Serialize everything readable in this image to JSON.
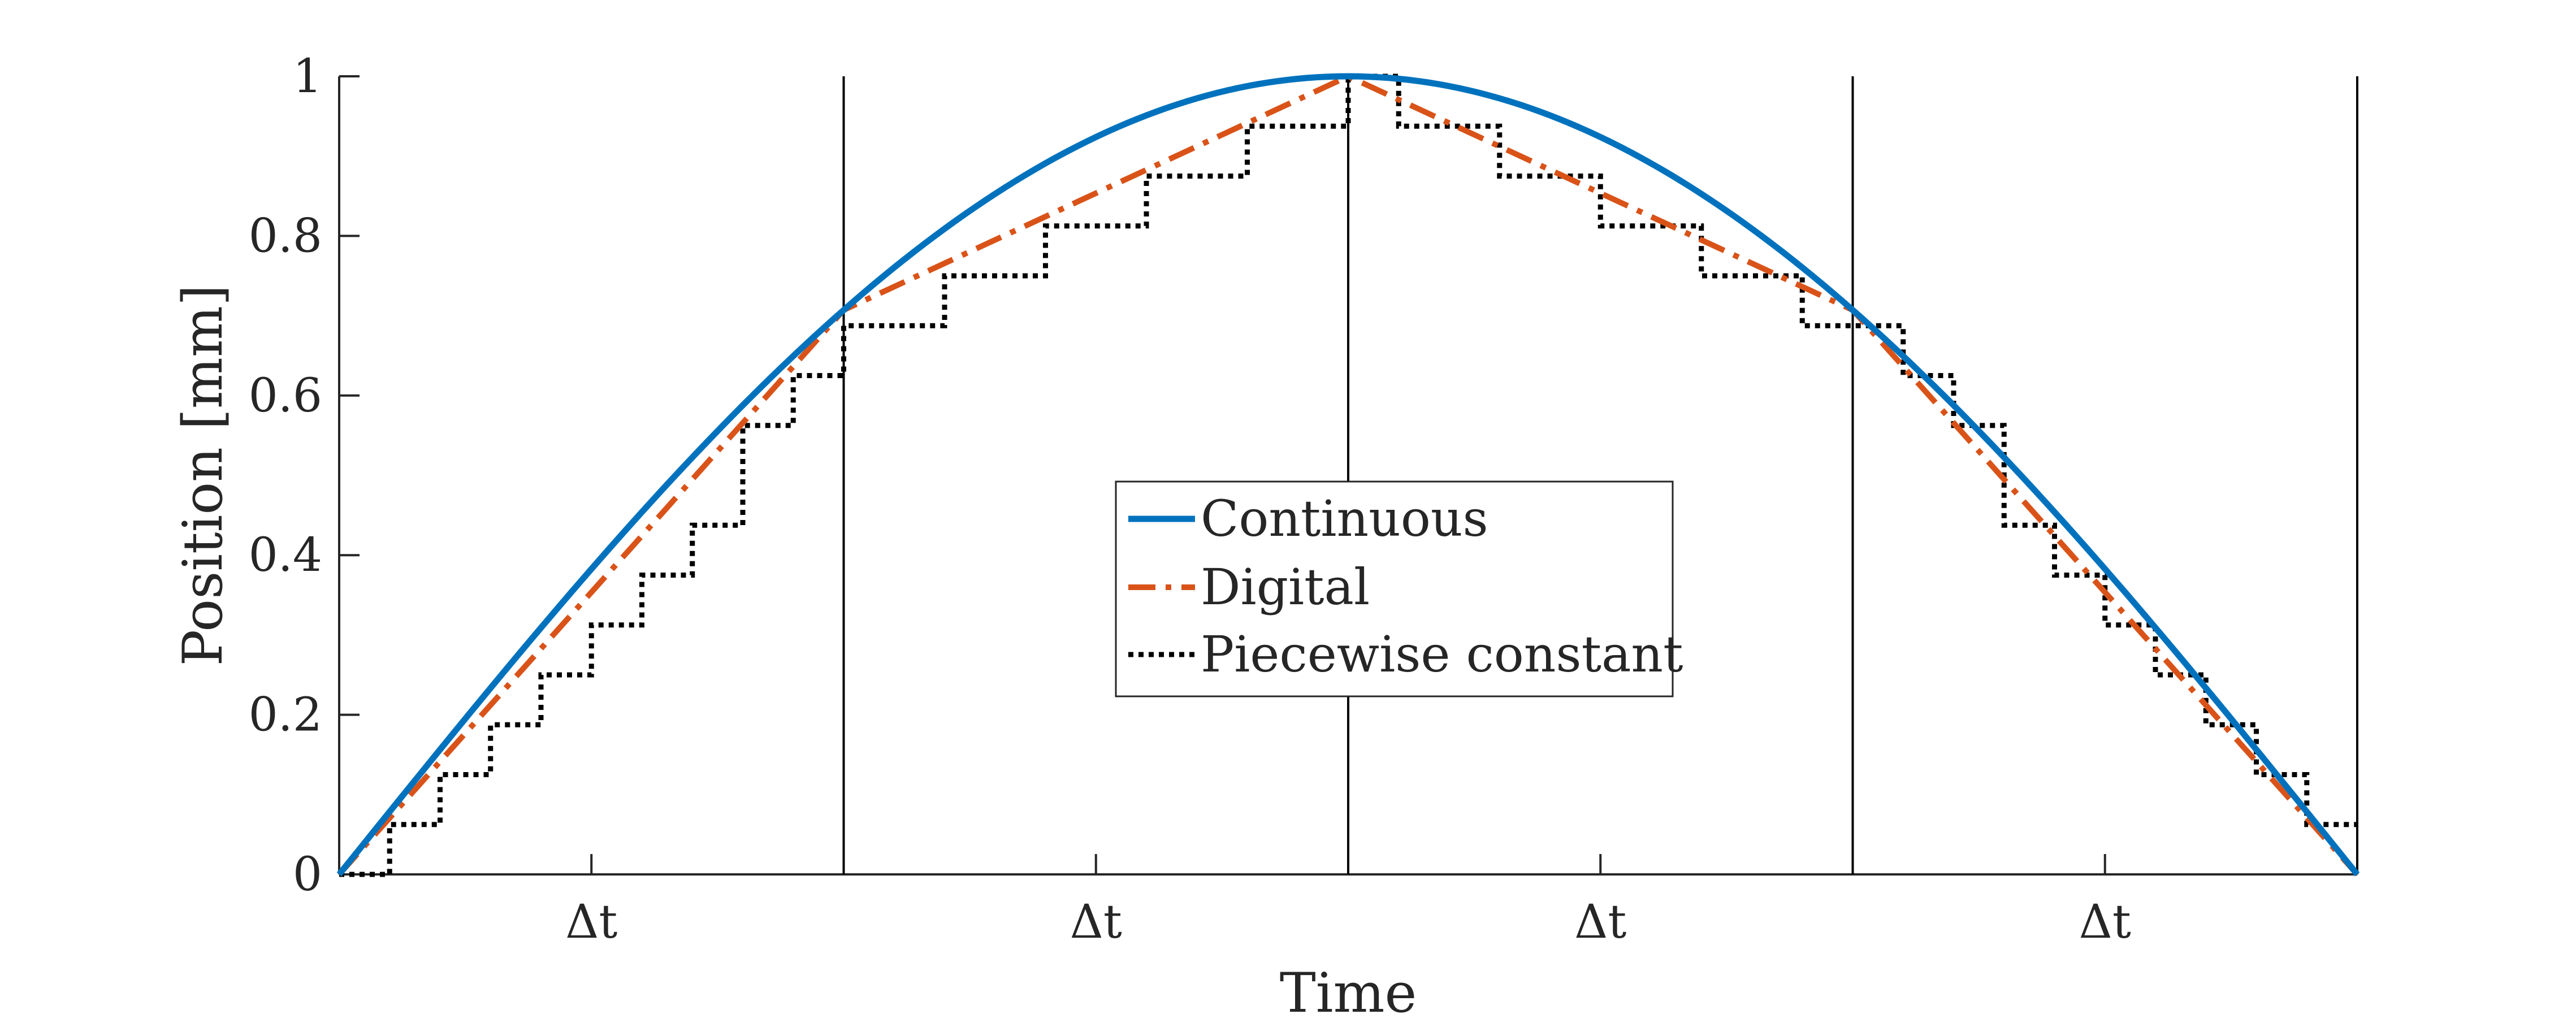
{
  "chart_data": {
    "type": "line",
    "xlabel": "Time",
    "ylabel": "Position [mm]",
    "title": "",
    "xlim": [
      0,
      1
    ],
    "ylim": [
      0,
      1
    ],
    "yticks": [
      0,
      0.2,
      0.4,
      0.6,
      0.8,
      1
    ],
    "ytick_labels": [
      "0",
      "0.2",
      "0.4",
      "0.6",
      "0.8",
      "1"
    ],
    "x_interval_labels": [
      "Δt",
      "Δt",
      "Δt",
      "Δt"
    ],
    "x_interval_label_positions": [
      0.125,
      0.375,
      0.625,
      0.875
    ],
    "vertical_lines": [
      0.25,
      0.5,
      0.75,
      1.0
    ],
    "legend_position": "center",
    "grid": false,
    "series": [
      {
        "name": "Continuous",
        "style": "solid",
        "color": "#0072BD",
        "function": "sin(pi*x)",
        "samples": 200
      },
      {
        "name": "Digital",
        "style": "dash-dot",
        "color": "#D95319",
        "x": [
          0,
          0.25,
          0.5,
          0.75,
          1.0
        ],
        "y": [
          0,
          0.7071,
          1.0,
          0.7071,
          0
        ]
      },
      {
        "name": "Piecewise constant",
        "style": "dotted",
        "color": "#000000",
        "step_width": 0.025,
        "quantization_step": 0.0625,
        "source": "Digital"
      }
    ]
  }
}
